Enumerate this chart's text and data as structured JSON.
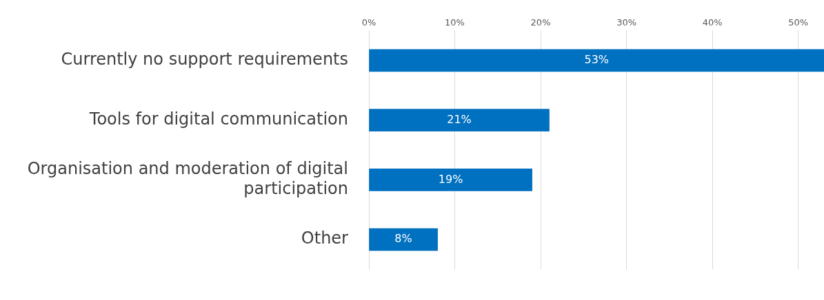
{
  "chart_data": {
    "type": "bar",
    "orientation": "horizontal",
    "categories": [
      "Currently no support requirements",
      "Tools for digital communication",
      "Organisation and moderation of digital participation",
      "Other"
    ],
    "values": [
      53,
      21,
      19,
      8
    ],
    "color": "#0070c0",
    "value_labels": [
      "53%",
      "21%",
      "19%",
      "8%"
    ],
    "xlim": [
      0,
      53
    ],
    "xticks": [
      {
        "value": 0,
        "label": "0%"
      },
      {
        "value": 10,
        "label": "10%"
      },
      {
        "value": 20,
        "label": "20%"
      },
      {
        "value": 30,
        "label": "30%"
      },
      {
        "value": 40,
        "label": "40%"
      },
      {
        "value": 50,
        "label": "50%"
      }
    ],
    "grid": "x"
  }
}
